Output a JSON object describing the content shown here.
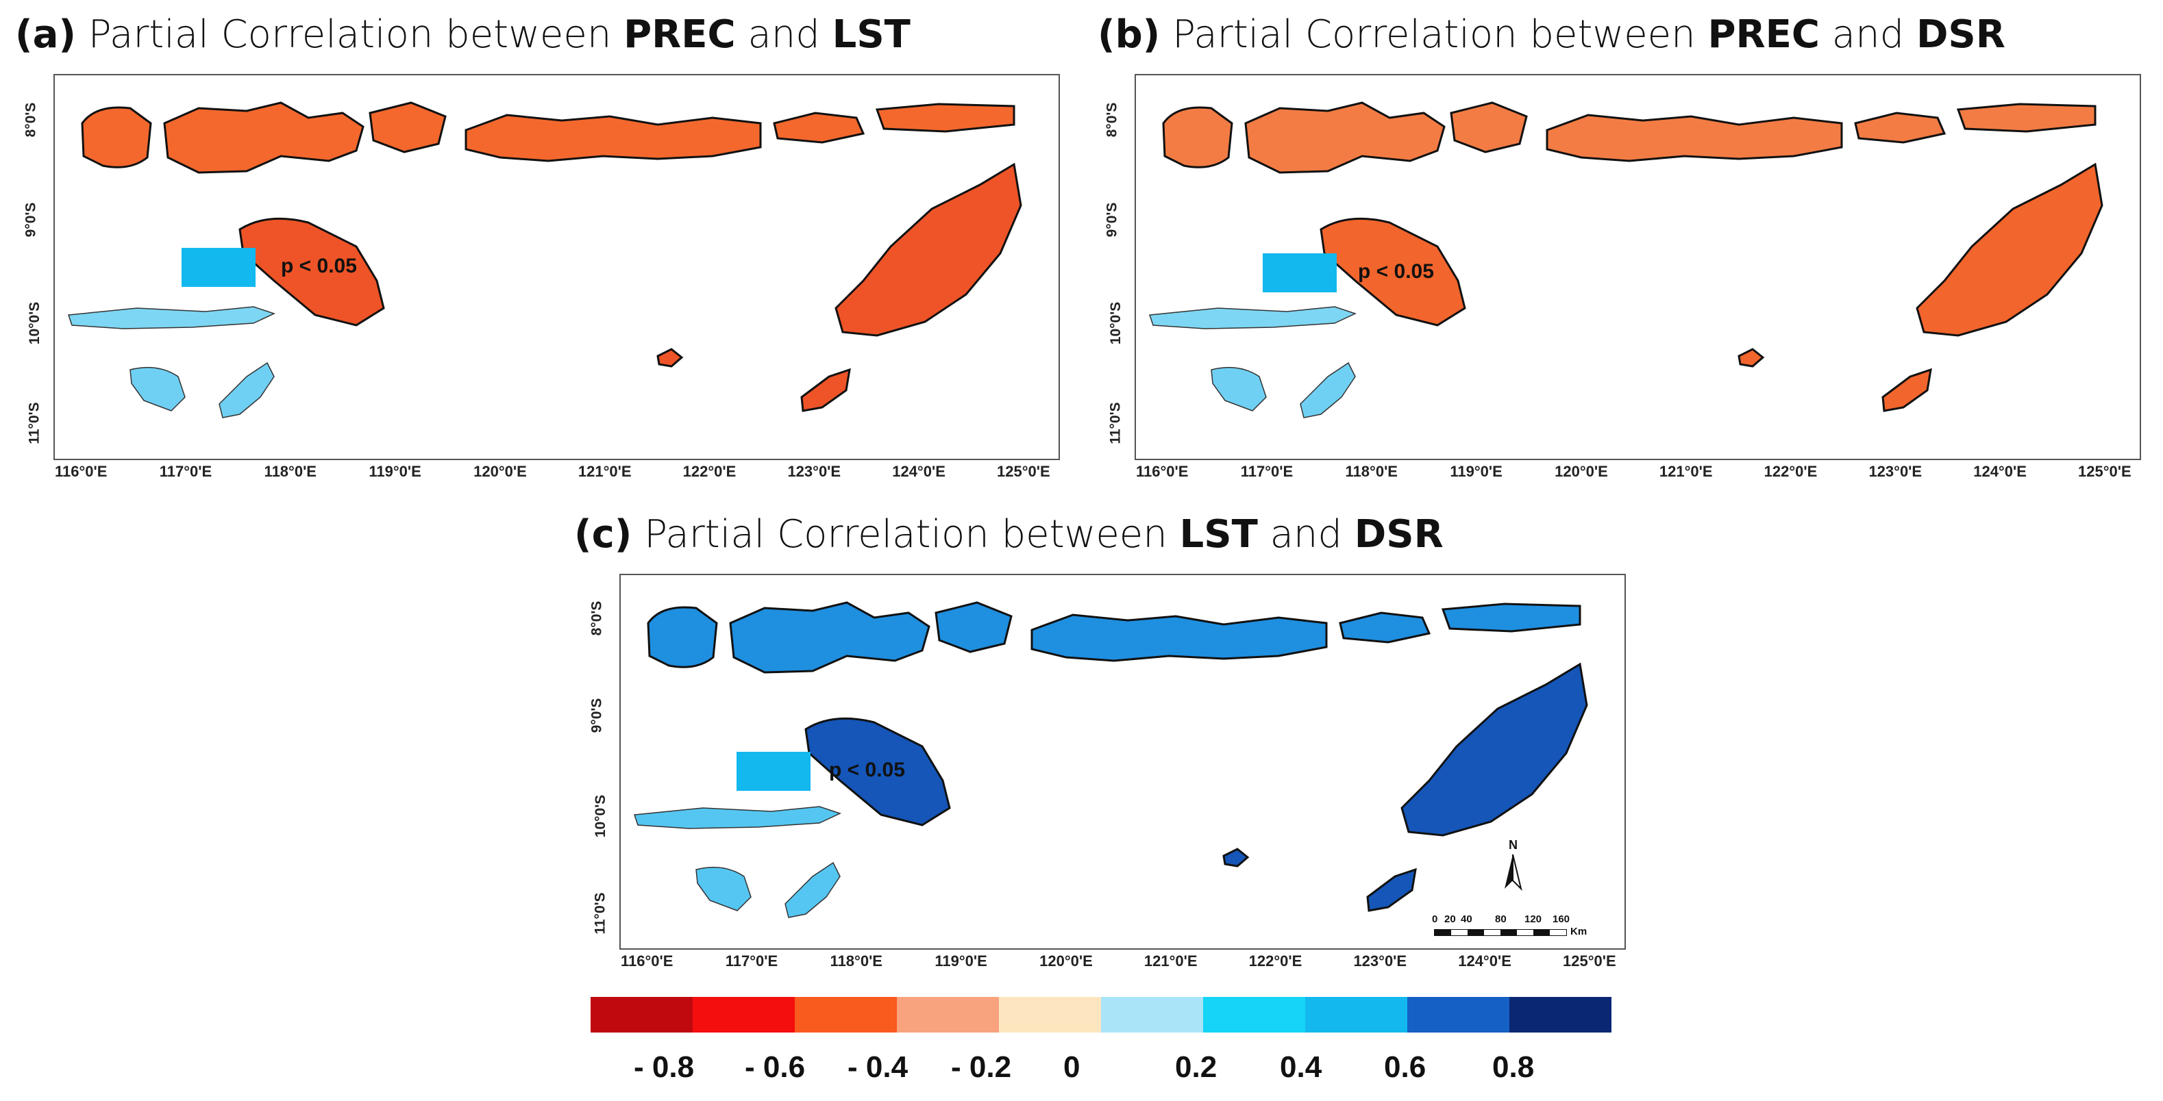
{
  "panels": [
    {
      "id": "a",
      "label": "(a)",
      "prefix": "Partial Correlation between",
      "var1": "PREC",
      "joiner": "and",
      "var2": "LST"
    },
    {
      "id": "b",
      "label": "(b)",
      "prefix": "Partial Correlation between",
      "var1": "PREC",
      "joiner": "and",
      "var2": "DSR"
    },
    {
      "id": "c",
      "label": "(c)",
      "prefix": "Partial Correlation between",
      "var1": "LST",
      "joiner": "and",
      "var2": "DSR"
    }
  ],
  "lat_ticks": [
    "8°0'S",
    "9°0'S",
    "10°0'S",
    "11°0'S"
  ],
  "lon_ticks": [
    "116°0'E",
    "117°0'E",
    "118°0'E",
    "119°0'E",
    "120°0'E",
    "121°0'E",
    "122°0'E",
    "123°0'E",
    "124°0'E",
    "125°0'E"
  ],
  "significance_label": "p < 0.05",
  "north_arrow": "N",
  "scale_bar": {
    "ticks": [
      "0",
      "20",
      "40",
      "80",
      "120",
      "160"
    ],
    "unit": "Km"
  },
  "legend": {
    "colors": [
      "#c0090f",
      "#f40e0e",
      "#f95a1e",
      "#f9a27e",
      "#fde6bf",
      "#a9e4f9",
      "#15d4f5",
      "#12b8ee",
      "#1560c4",
      "#0a2774"
    ],
    "ticks": [
      "- 0.8",
      "- 0.6",
      "- 0.4",
      "- 0.2",
      "0",
      "0.2",
      "0.4",
      "0.6",
      "0.8"
    ]
  },
  "fill_colors": {
    "a": {
      "north": "#f4682d",
      "east": "#ee5427",
      "west": "#7dd6f3",
      "south": "#6fd0f3"
    },
    "b": {
      "north": "#f37c44",
      "east": "#f2652c",
      "west": "#7dd6f3",
      "south": "#6fd0f3"
    },
    "c": {
      "north": "#1f8fe0",
      "east": "#1556b8",
      "west": "#55c6f1",
      "south": "#55c6f1"
    }
  }
}
